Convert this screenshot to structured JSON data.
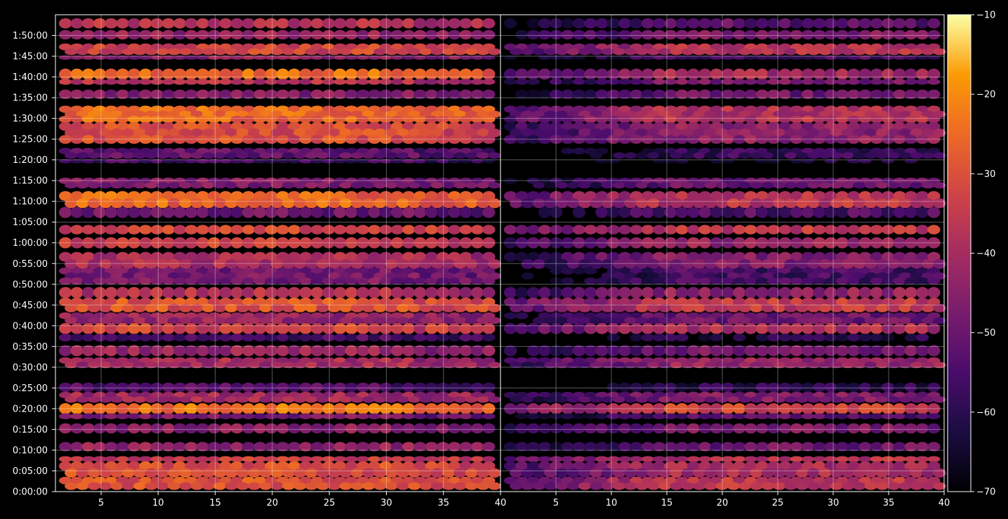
{
  "chart_data": {
    "type": "heatmap",
    "title": "",
    "xlabel": "",
    "ylabel": "",
    "background": "#000000",
    "colormap": "inferno",
    "panels": [
      {
        "xlim": [
          1,
          40
        ],
        "xticks": [
          5,
          10,
          15,
          20,
          25,
          30,
          35,
          40
        ]
      },
      {
        "xlim": [
          0,
          40
        ],
        "xticks": [
          5,
          10,
          15,
          20,
          25,
          30,
          35,
          40
        ]
      }
    ],
    "ylim_seconds": [
      0,
      6900
    ],
    "yticks": [
      {
        "label": "0:00:00",
        "seconds": 0
      },
      {
        "label": "0:05:00",
        "seconds": 300
      },
      {
        "label": "0:10:00",
        "seconds": 600
      },
      {
        "label": "0:15:00",
        "seconds": 900
      },
      {
        "label": "0:20:00",
        "seconds": 1200
      },
      {
        "label": "0:25:00",
        "seconds": 1500
      },
      {
        "label": "0:30:00",
        "seconds": 1800
      },
      {
        "label": "0:35:00",
        "seconds": 2100
      },
      {
        "label": "0:40:00",
        "seconds": 2400
      },
      {
        "label": "0:45:00",
        "seconds": 2700
      },
      {
        "label": "0:50:00",
        "seconds": 3000
      },
      {
        "label": "0:55:00",
        "seconds": 3300
      },
      {
        "label": "1:00:00",
        "seconds": 3600
      },
      {
        "label": "1:05:00",
        "seconds": 3900
      },
      {
        "label": "1:10:00",
        "seconds": 4200
      },
      {
        "label": "1:15:00",
        "seconds": 4500
      },
      {
        "label": "1:20:00",
        "seconds": 4800
      },
      {
        "label": "1:25:00",
        "seconds": 5100
      },
      {
        "label": "1:30:00",
        "seconds": 5400
      },
      {
        "label": "1:35:00",
        "seconds": 5700
      },
      {
        "label": "1:40:00",
        "seconds": 6000
      },
      {
        "label": "1:45:00",
        "seconds": 6300
      },
      {
        "label": "1:50:00",
        "seconds": 6600
      }
    ],
    "colorbar": {
      "range": [
        -70,
        -10
      ],
      "ticks": [
        "−10",
        "−20",
        "−30",
        "−40",
        "−50",
        "−60",
        "−70"
      ],
      "tick_values": [
        -10,
        -20,
        -30,
        -40,
        -50,
        -60,
        -70
      ]
    },
    "bands": [
      {
        "start_s": 6720,
        "end_s": 6830,
        "left": -38,
        "right": -52
      },
      {
        "start_s": 6560,
        "end_s": 6660,
        "left": -43,
        "right": -47
      },
      {
        "start_s": 6330,
        "end_s": 6470,
        "left": -33,
        "right": -38
      },
      {
        "start_s": 6260,
        "end_s": 6300,
        "left": -45,
        "right": -55
      },
      {
        "start_s": 5980,
        "end_s": 6100,
        "left": -25,
        "right": -41
      },
      {
        "start_s": 5900,
        "end_s": 5960,
        "left": -38,
        "right": -48
      },
      {
        "start_s": 5700,
        "end_s": 5800,
        "left": -46,
        "right": -50
      },
      {
        "start_s": 5350,
        "end_s": 5570,
        "left": -26,
        "right": -38
      },
      {
        "start_s": 5050,
        "end_s": 5330,
        "left": -31,
        "right": -44
      },
      {
        "start_s": 4830,
        "end_s": 4960,
        "left": -52,
        "right": -58
      },
      {
        "start_s": 4760,
        "end_s": 4800,
        "left": -56,
        "right": -64
      },
      {
        "start_s": 4400,
        "end_s": 4530,
        "left": -47,
        "right": -50
      },
      {
        "start_s": 4120,
        "end_s": 4330,
        "left": -26,
        "right": -37
      },
      {
        "start_s": 3980,
        "end_s": 4100,
        "left": -50,
        "right": -54
      },
      {
        "start_s": 3740,
        "end_s": 3840,
        "left": -33,
        "right": -36
      },
      {
        "start_s": 3540,
        "end_s": 3660,
        "left": -33,
        "right": -43
      },
      {
        "start_s": 3240,
        "end_s": 3450,
        "left": -39,
        "right": -46
      },
      {
        "start_s": 3010,
        "end_s": 3230,
        "left": -48,
        "right": -56
      },
      {
        "start_s": 2820,
        "end_s": 2940,
        "left": -38,
        "right": -44
      },
      {
        "start_s": 2610,
        "end_s": 2790,
        "left": -30,
        "right": -36
      },
      {
        "start_s": 2440,
        "end_s": 2580,
        "left": -43,
        "right": -50
      },
      {
        "start_s": 2300,
        "end_s": 2420,
        "left": -33,
        "right": -39
      },
      {
        "start_s": 2190,
        "end_s": 2270,
        "left": -55,
        "right": -62
      },
      {
        "start_s": 1980,
        "end_s": 2100,
        "left": -43,
        "right": -49
      },
      {
        "start_s": 1800,
        "end_s": 1930,
        "left": -40,
        "right": -43
      },
      {
        "start_s": 1460,
        "end_s": 1560,
        "left": -54,
        "right": -60
      },
      {
        "start_s": 1300,
        "end_s": 1430,
        "left": -41,
        "right": -47
      },
      {
        "start_s": 1140,
        "end_s": 1260,
        "left": -24,
        "right": -33
      },
      {
        "start_s": 1060,
        "end_s": 1120,
        "left": -48,
        "right": -53
      },
      {
        "start_s": 860,
        "end_s": 970,
        "left": -45,
        "right": -48
      },
      {
        "start_s": 600,
        "end_s": 700,
        "left": -44,
        "right": -50
      },
      {
        "start_s": 440,
        "end_s": 500,
        "left": -35,
        "right": -38
      },
      {
        "start_s": 220,
        "end_s": 420,
        "left": -31,
        "right": -40
      },
      {
        "start_s": 40,
        "end_s": 200,
        "left": -30,
        "right": -36
      }
    ]
  }
}
